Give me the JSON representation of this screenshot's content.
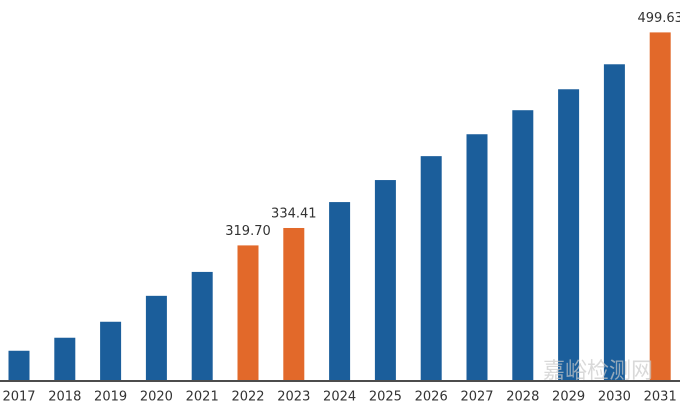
{
  "chart_data": {
    "type": "bar",
    "categories": [
      "2017",
      "2018",
      "2019",
      "2020",
      "2021",
      "2022",
      "2023",
      "2024",
      "2025",
      "2026",
      "2027",
      "2028",
      "2029",
      "2030",
      "2031"
    ],
    "values": [
      230.7,
      241.7,
      255.2,
      277.1,
      297.3,
      319.7,
      334.41,
      356.3,
      374.9,
      395.1,
      413.6,
      433.9,
      451.6,
      472.7,
      499.63
    ],
    "value_labels": [
      null,
      null,
      null,
      null,
      null,
      "319.70",
      "334.41",
      null,
      null,
      null,
      null,
      null,
      null,
      null,
      "499.63"
    ],
    "colors": [
      "#1b5e9b",
      "#1b5e9b",
      "#1b5e9b",
      "#1b5e9b",
      "#1b5e9b",
      "#e2692a",
      "#e2692a",
      "#1b5e9b",
      "#1b5e9b",
      "#1b5e9b",
      "#1b5e9b",
      "#1b5e9b",
      "#1b5e9b",
      "#1b5e9b",
      "#e2692a"
    ],
    "ylim": [
      206,
      527
    ],
    "watermark": "嘉峪检测网"
  }
}
